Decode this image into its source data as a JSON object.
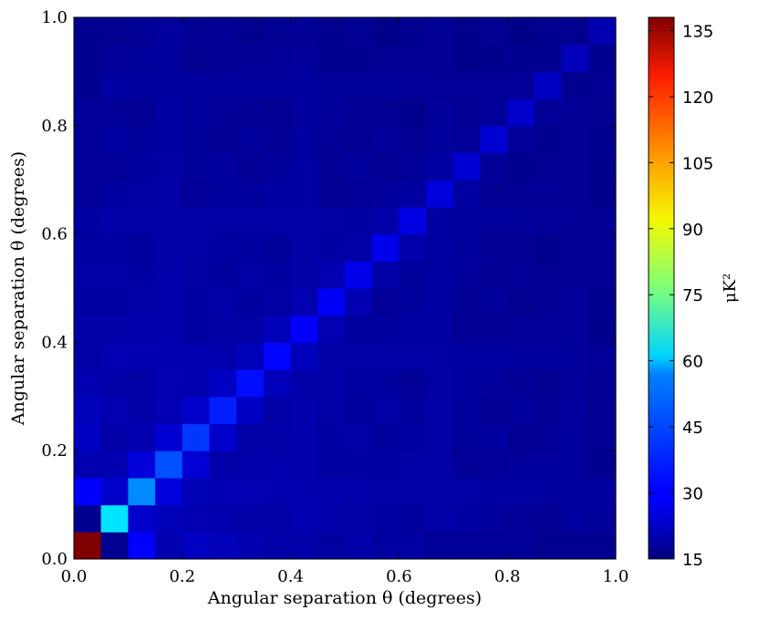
{
  "chart_data": {
    "type": "heatmap",
    "title": "",
    "xlabel": "Angular separation θ (degrees)",
    "ylabel": "Angular separation θ (degrees)",
    "xlim": [
      0.0,
      1.0
    ],
    "ylim": [
      0.0,
      1.0
    ],
    "x_ticks": [
      "0.0",
      "0.2",
      "0.4",
      "0.6",
      "0.8",
      "1.0"
    ],
    "y_ticks": [
      "0.0",
      "0.2",
      "0.4",
      "0.6",
      "0.8",
      "1.0"
    ],
    "grid": false,
    "colormap": "jet",
    "n_bins": 20,
    "colorbar": {
      "label": "μK²",
      "range": [
        15,
        138
      ],
      "ticks": [
        "15",
        "30",
        "45",
        "60",
        "75",
        "90",
        "105",
        "120",
        "135"
      ]
    },
    "diagonal_values": [
      138,
      58,
      47,
      40,
      37,
      34,
      32,
      31,
      30,
      29,
      28,
      28,
      27,
      26,
      25,
      25,
      24,
      23,
      22,
      21
    ],
    "first_off_diagonal_values": [
      17,
      24,
      26,
      25,
      24,
      23,
      22,
      22,
      21,
      21,
      20,
      20,
      19,
      19,
      18,
      18,
      18,
      17,
      17
    ],
    "first_row_values": [
      138,
      17,
      30,
      21,
      23,
      22,
      21,
      20,
      20,
      19,
      20,
      19,
      19,
      18,
      18,
      18,
      18,
      17,
      17,
      17
    ]
  }
}
